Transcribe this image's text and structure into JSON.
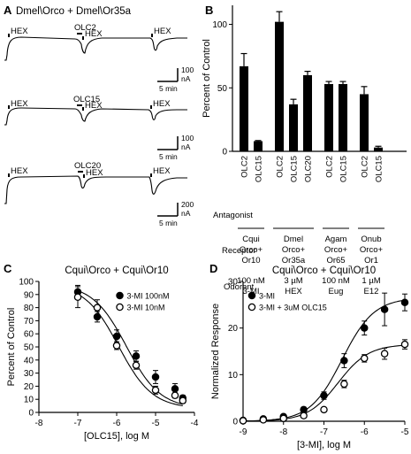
{
  "panels": {
    "A": {
      "letter": "A",
      "title": "Dmel\\Orco + Dmel\\Or35a",
      "traces": [
        {
          "stim": [
            {
              "label": "HEX"
            },
            {
              "label": "OLC2"
            },
            {
              "label": "HEX"
            },
            {
              "label": "HEX"
            }
          ],
          "scale": {
            "y_value": "100",
            "y_unit": "nA",
            "x": "5 min"
          }
        },
        {
          "stim": [
            {
              "label": "HEX"
            },
            {
              "label": "OLC15"
            },
            {
              "label": "HEX"
            },
            {
              "label": "HEX"
            }
          ],
          "scale": {
            "y_value": "100",
            "y_unit": "nA",
            "x": "5 min"
          }
        },
        {
          "stim": [
            {
              "label": "HEX"
            },
            {
              "label": "OLC20"
            },
            {
              "label": "HEX"
            },
            {
              "label": "HEX"
            }
          ],
          "scale": {
            "y_value": "200",
            "y_unit": "nA",
            "x": "5 min"
          }
        }
      ]
    },
    "B": {
      "letter": "B",
      "row_labels": [
        "Antagonist",
        "Receptor",
        "Odorant"
      ]
    },
    "C": {
      "letter": "C"
    },
    "D": {
      "letter": "D"
    }
  },
  "chart_data": [
    {
      "id": "B",
      "type": "bar",
      "ylabel": "Percent of Control",
      "ylim": [
        0,
        115
      ],
      "yticks": [
        0,
        50,
        100
      ],
      "error_bars": true,
      "groups": [
        {
          "receptor": [
            "Cqui",
            "Orco+",
            "Or10"
          ],
          "odorant": [
            "100 nM",
            "3-MI"
          ],
          "bars": [
            {
              "antagonist": "OLC2",
              "value": 67,
              "err": 10
            },
            {
              "antagonist": "OLC15",
              "value": 8,
              "err": 0.5
            }
          ]
        },
        {
          "receptor": [
            "Dmel",
            "Orco+",
            "Or35a"
          ],
          "odorant": [
            "3 µM",
            "HEX"
          ],
          "bars": [
            {
              "antagonist": "OLC2",
              "value": 102,
              "err": 8
            },
            {
              "antagonist": "OLC15",
              "value": 37,
              "err": 4
            },
            {
              "antagonist": "OLC20",
              "value": 60,
              "err": 3
            }
          ]
        },
        {
          "receptor": [
            "Agam",
            "Orco+",
            "Or65"
          ],
          "odorant": [
            "100 nM",
            "Eug"
          ],
          "bars": [
            {
              "antagonist": "OLC2",
              "value": 53,
              "err": 2
            },
            {
              "antagonist": "OLC15",
              "value": 53,
              "err": 2
            }
          ]
        },
        {
          "receptor": [
            "Onub",
            "Orco+",
            "Or1"
          ],
          "odorant": [
            "1 µM",
            "E12"
          ],
          "bars": [
            {
              "antagonist": "OLC2",
              "value": 45,
              "err": 6
            },
            {
              "antagonist": "OLC15",
              "value": 3,
              "err": 1
            }
          ]
        }
      ]
    },
    {
      "id": "C",
      "type": "scatter",
      "title": "Cqui\\Orco + Cqui\\Or10",
      "xlabel": "[OLC15], log M",
      "ylabel": "Percent of Control",
      "xlim": [
        -8,
        -4
      ],
      "ylim": [
        0,
        100
      ],
      "xticks": [
        -8,
        -7,
        -6,
        -5,
        -4
      ],
      "yticks": [
        0,
        10,
        20,
        30,
        40,
        50,
        60,
        70,
        80,
        90,
        100
      ],
      "legend_position": "top-right",
      "series": [
        {
          "name": "3-MI 100nM",
          "marker": "filled",
          "x": [
            -7,
            -6.5,
            -6,
            -5.5,
            -5,
            -4.5,
            -4.3
          ],
          "y": [
            92,
            73,
            58,
            43,
            27,
            18,
            11
          ],
          "err": [
            5,
            4,
            5,
            4,
            5,
            4,
            2
          ]
        },
        {
          "name": "3-MI 10nM",
          "marker": "open",
          "x": [
            -7,
            -6.5,
            -6,
            -5.5,
            -5,
            -4.5,
            -4.3
          ],
          "y": [
            88,
            80,
            51,
            36,
            17,
            13,
            9
          ],
          "err": [
            8,
            6,
            3,
            3,
            3,
            2,
            2
          ]
        }
      ]
    },
    {
      "id": "D",
      "type": "scatter",
      "title": "Cqui\\Orco + Cqui\\Or10",
      "xlabel": "[3-MI], log M",
      "ylabel": "Normalized Response",
      "xlim": [
        -9,
        -5
      ],
      "ylim": [
        0,
        30
      ],
      "xticks": [
        -9,
        -8,
        -7,
        -6,
        -5
      ],
      "yticks": [
        0,
        10,
        20,
        30
      ],
      "legend_position": "top-left",
      "series": [
        {
          "name": "3-MI",
          "marker": "filled",
          "x": [
            -9,
            -8.5,
            -8,
            -7.5,
            -7,
            -6.5,
            -6,
            -5.5,
            -5
          ],
          "y": [
            0.2,
            0.5,
            1,
            2.5,
            5.5,
            13,
            20,
            24,
            25.5
          ],
          "err": [
            0.1,
            0.2,
            0.3,
            0.5,
            0.8,
            1.5,
            1.5,
            3.5,
            1.8
          ]
        },
        {
          "name": "3-MI + 3uM OLC15",
          "marker": "open",
          "x": [
            -9,
            -8.5,
            -8,
            -7.5,
            -7,
            -6.5,
            -6,
            -5.5,
            -5
          ],
          "y": [
            0.1,
            0.3,
            0.6,
            1.2,
            2.5,
            8,
            13.5,
            14.5,
            16.5
          ],
          "err": [
            0.1,
            0.1,
            0.2,
            0.3,
            0.4,
            0.8,
            0.8,
            1.2,
            1
          ]
        }
      ]
    }
  ]
}
